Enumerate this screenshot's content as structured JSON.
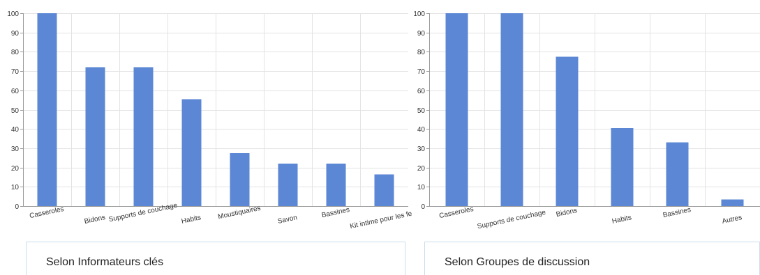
{
  "colors": {
    "bar": "#5b87d5",
    "grid": "#e3e3e3",
    "axis": "#9a9a9a"
  },
  "chart_data": [
    {
      "type": "bar",
      "caption": "Selon Informateurs clés",
      "categories": [
        "Casseroles",
        "Bidons",
        "Supports de couchage",
        "Habits",
        "Moustiquaires",
        "Savon",
        "Bassines",
        "Kit intime pour les fe..."
      ],
      "values": [
        100,
        72,
        72,
        55.5,
        27.5,
        22,
        22,
        16.5
      ],
      "ylim": [
        0,
        100
      ],
      "yticks": [
        "0",
        "10",
        "20",
        "30",
        "40",
        "50",
        "60",
        "70",
        "80",
        "90",
        "100"
      ],
      "grid": true,
      "legend": "none"
    },
    {
      "type": "bar",
      "caption": "Selon Groupes de discussion",
      "categories": [
        "Casseroles",
        "Supports de couchage",
        "Bidons",
        "Habits",
        "Bassines",
        "Autres"
      ],
      "values": [
        100,
        100,
        77.5,
        40.5,
        33,
        3.5
      ],
      "ylim": [
        0,
        100
      ],
      "yticks": [
        "0",
        "10",
        "20",
        "30",
        "40",
        "50",
        "60",
        "70",
        "80",
        "90",
        "100"
      ],
      "grid": true,
      "legend": "none"
    }
  ]
}
